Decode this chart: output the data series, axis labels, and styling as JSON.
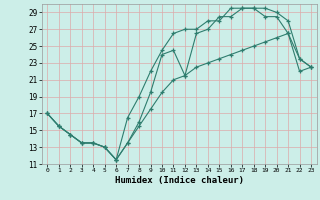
{
  "title": "",
  "xlabel": "Humidex (Indice chaleur)",
  "bg_color": "#cceee8",
  "grid_color": "#aaddcc",
  "line_color": "#2e7d6e",
  "xlim": [
    -0.5,
    23.5
  ],
  "ylim": [
    11,
    30
  ],
  "yticks": [
    11,
    13,
    15,
    17,
    19,
    21,
    23,
    25,
    27,
    29
  ],
  "xticks": [
    0,
    1,
    2,
    3,
    4,
    5,
    6,
    7,
    8,
    9,
    10,
    11,
    12,
    13,
    14,
    15,
    16,
    17,
    18,
    19,
    20,
    21,
    22,
    23
  ],
  "line1_x": [
    0,
    1,
    2,
    3,
    4,
    5,
    6,
    7,
    8,
    9,
    10,
    11,
    12,
    13,
    14,
    15,
    16,
    17,
    18,
    19,
    20,
    21,
    22,
    23
  ],
  "line1_y": [
    17.0,
    15.5,
    14.5,
    13.5,
    13.5,
    13.0,
    11.5,
    13.5,
    15.5,
    17.5,
    19.5,
    21.0,
    21.5,
    22.5,
    23.0,
    23.5,
    24.0,
    24.5,
    25.0,
    25.5,
    26.0,
    26.5,
    22.0,
    22.5
  ],
  "line2_x": [
    0,
    1,
    2,
    3,
    4,
    5,
    6,
    7,
    8,
    9,
    10,
    11,
    12,
    13,
    14,
    15,
    16,
    17,
    18,
    19,
    20,
    21,
    22,
    23
  ],
  "line2_y": [
    17.0,
    15.5,
    14.5,
    13.5,
    13.5,
    13.0,
    11.5,
    13.5,
    16.0,
    19.5,
    24.0,
    24.5,
    21.5,
    26.5,
    27.0,
    28.5,
    28.5,
    29.5,
    29.5,
    29.5,
    29.0,
    28.0,
    23.5,
    22.5
  ],
  "line3_x": [
    0,
    1,
    2,
    3,
    4,
    5,
    6,
    7,
    8,
    9,
    10,
    11,
    12,
    13,
    14,
    15,
    16,
    17,
    18,
    19,
    20,
    21,
    22,
    23
  ],
  "line3_y": [
    17.0,
    15.5,
    14.5,
    13.5,
    13.5,
    13.0,
    11.5,
    16.5,
    19.0,
    22.0,
    24.5,
    26.5,
    27.0,
    27.0,
    28.0,
    28.0,
    29.5,
    29.5,
    29.5,
    28.5,
    28.5,
    26.5,
    23.5,
    22.5
  ]
}
